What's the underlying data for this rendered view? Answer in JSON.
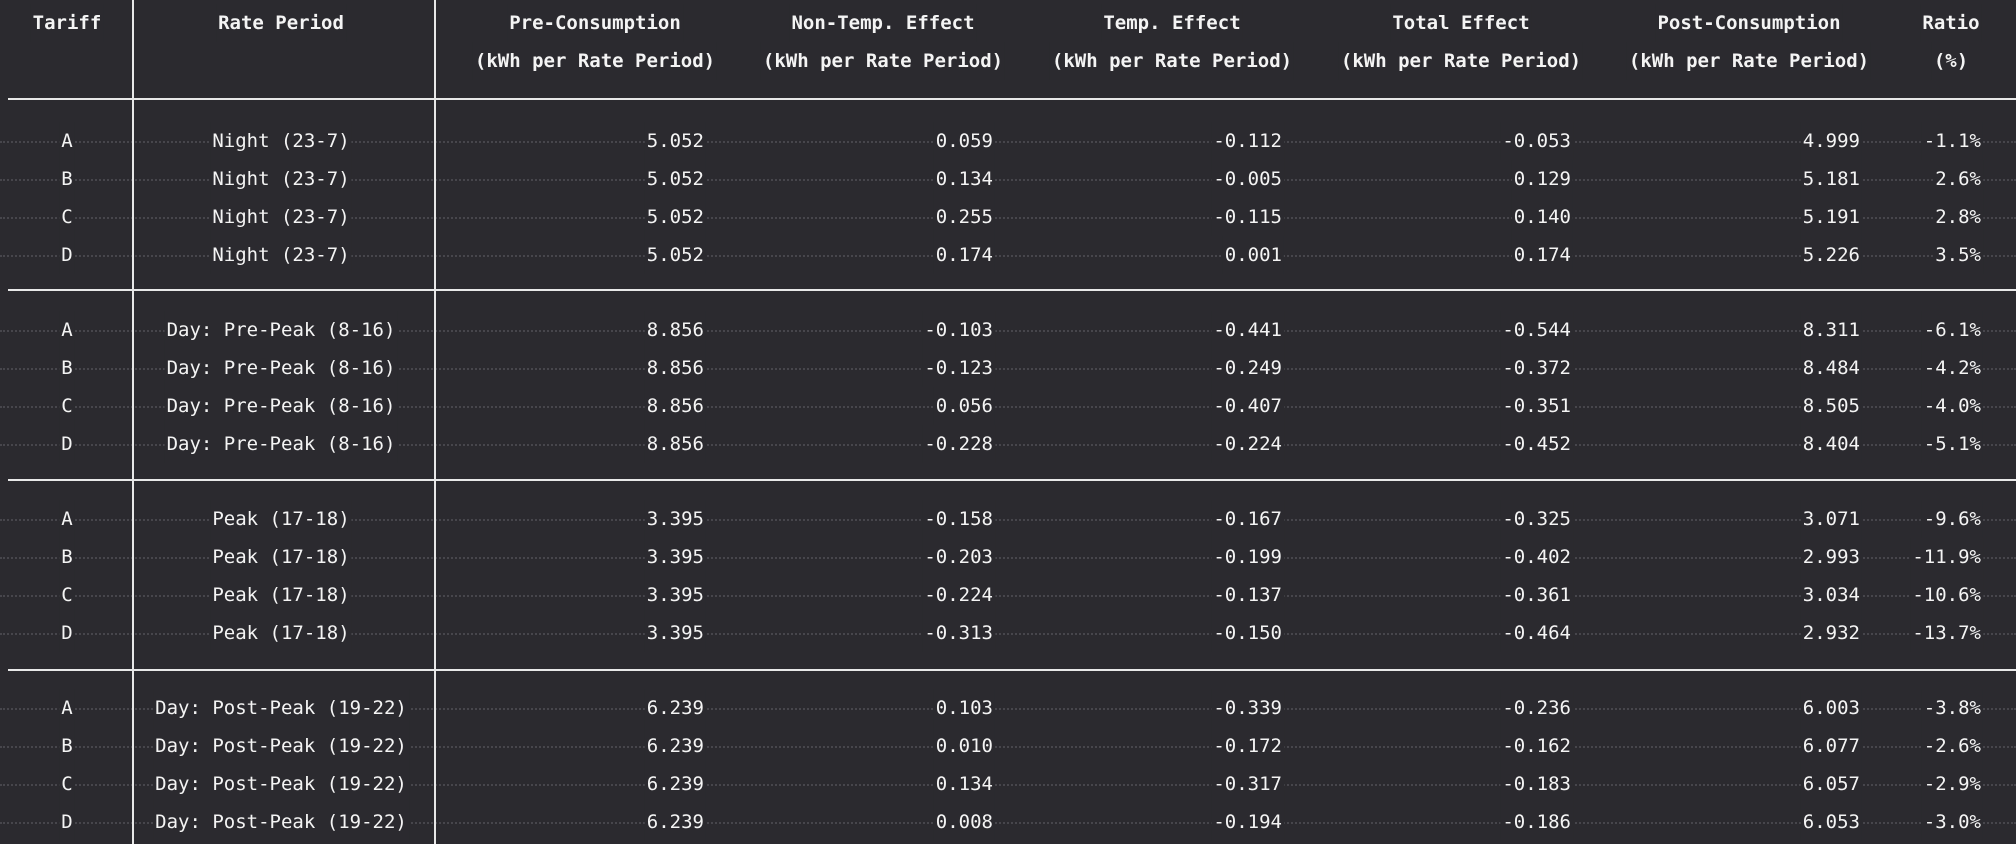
{
  "headers": {
    "line1": [
      "Tariff",
      "Rate Period",
      "Pre-Consumption",
      "Non-Temp. Effect",
      "Temp. Effect",
      "Total Effect",
      "Post-Consumption",
      "Ratio"
    ],
    "line2": [
      "",
      "",
      "(kWh per Rate Period)",
      "(kWh per Rate Period)",
      "(kWh per Rate Period)",
      "(kWh per Rate Period)",
      "(kWh per Rate Period)",
      "(%)"
    ]
  },
  "groups": [
    {
      "rows": [
        [
          "A",
          "Night (23-7)",
          "5.052",
          "0.059",
          "-0.112",
          "-0.053",
          "4.999",
          "-1.1%"
        ],
        [
          "B",
          "Night (23-7)",
          "5.052",
          "0.134",
          "-0.005",
          "0.129",
          "5.181",
          "2.6%"
        ],
        [
          "C",
          "Night (23-7)",
          "5.052",
          "0.255",
          "-0.115",
          "0.140",
          "5.191",
          "2.8%"
        ],
        [
          "D",
          "Night (23-7)",
          "5.052",
          "0.174",
          "0.001",
          "0.174",
          "5.226",
          "3.5%"
        ]
      ]
    },
    {
      "rows": [
        [
          "A",
          "Day: Pre-Peak (8-16)",
          "8.856",
          "-0.103",
          "-0.441",
          "-0.544",
          "8.311",
          "-6.1%"
        ],
        [
          "B",
          "Day: Pre-Peak (8-16)",
          "8.856",
          "-0.123",
          "-0.249",
          "-0.372",
          "8.484",
          "-4.2%"
        ],
        [
          "C",
          "Day: Pre-Peak (8-16)",
          "8.856",
          "0.056",
          "-0.407",
          "-0.351",
          "8.505",
          "-4.0%"
        ],
        [
          "D",
          "Day: Pre-Peak (8-16)",
          "8.856",
          "-0.228",
          "-0.224",
          "-0.452",
          "8.404",
          "-5.1%"
        ]
      ]
    },
    {
      "rows": [
        [
          "A",
          "Peak (17-18)",
          "3.395",
          "-0.158",
          "-0.167",
          "-0.325",
          "3.071",
          "-9.6%"
        ],
        [
          "B",
          "Peak (17-18)",
          "3.395",
          "-0.203",
          "-0.199",
          "-0.402",
          "2.993",
          "-11.9%"
        ],
        [
          "C",
          "Peak (17-18)",
          "3.395",
          "-0.224",
          "-0.137",
          "-0.361",
          "3.034",
          "-10.6%"
        ],
        [
          "D",
          "Peak (17-18)",
          "3.395",
          "-0.313",
          "-0.150",
          "-0.464",
          "2.932",
          "-13.7%"
        ]
      ]
    },
    {
      "rows": [
        [
          "A",
          "Day: Post-Peak (19-22)",
          "6.239",
          "0.103",
          "-0.339",
          "-0.236",
          "6.003",
          "-3.8%"
        ],
        [
          "B",
          "Day: Post-Peak (19-22)",
          "6.239",
          "0.010",
          "-0.172",
          "-0.162",
          "6.077",
          "-2.6%"
        ],
        [
          "C",
          "Day: Post-Peak (19-22)",
          "6.239",
          "0.134",
          "-0.317",
          "-0.183",
          "6.057",
          "-2.9%"
        ],
        [
          "D",
          "Day: Post-Peak (19-22)",
          "6.239",
          "0.008",
          "-0.194",
          "-0.186",
          "6.053",
          "-3.0%"
        ]
      ]
    }
  ]
}
